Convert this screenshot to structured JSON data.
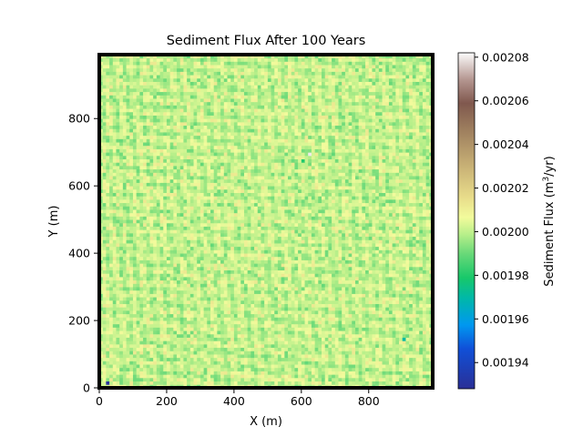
{
  "chart_data": {
    "type": "heatmap",
    "title": "Sediment Flux After 100 Years",
    "xlabel": "X (m)",
    "ylabel": "Y (m)",
    "xlim": [
      0,
      990
    ],
    "ylim": [
      0,
      990
    ],
    "grid_cells": [
      99,
      99
    ],
    "cell_size_m": 10,
    "x_ticks": [
      0,
      200,
      400,
      600,
      800
    ],
    "y_ticks": [
      0,
      200,
      400,
      600,
      800
    ],
    "x_tick_labels": [
      "0",
      "200",
      "400",
      "600",
      "800"
    ],
    "y_tick_labels": [
      "0",
      "200",
      "400",
      "600",
      "800"
    ],
    "colormap": "terrain",
    "background_value": 0.002,
    "value_range": [
      0.001928,
      0.002082
    ],
    "typical_range": [
      0.001988,
      0.002015
    ],
    "anomalies": [
      {
        "x": 620,
        "y": 690,
        "value": 0.00208
      },
      {
        "x": 600,
        "y": 670,
        "value": 0.00198
      },
      {
        "x": 900,
        "y": 140,
        "value": 0.00197
      },
      {
        "x": 20,
        "y": 10,
        "value": 0.00193
      }
    ],
    "colorbar": {
      "label": "Sediment Flux (m³/yr)",
      "label_main": "Sediment Flux (m",
      "label_sup": "3",
      "label_tail": "/yr)",
      "ticks": [
        0.00194,
        0.00196,
        0.00198,
        0.002,
        0.00202,
        0.00204,
        0.00206,
        0.00208
      ],
      "tick_labels": [
        "0.00194",
        "0.00196",
        "0.00198",
        "0.00200",
        "0.00202",
        "0.00204",
        "0.00206",
        "0.00208"
      ]
    }
  }
}
